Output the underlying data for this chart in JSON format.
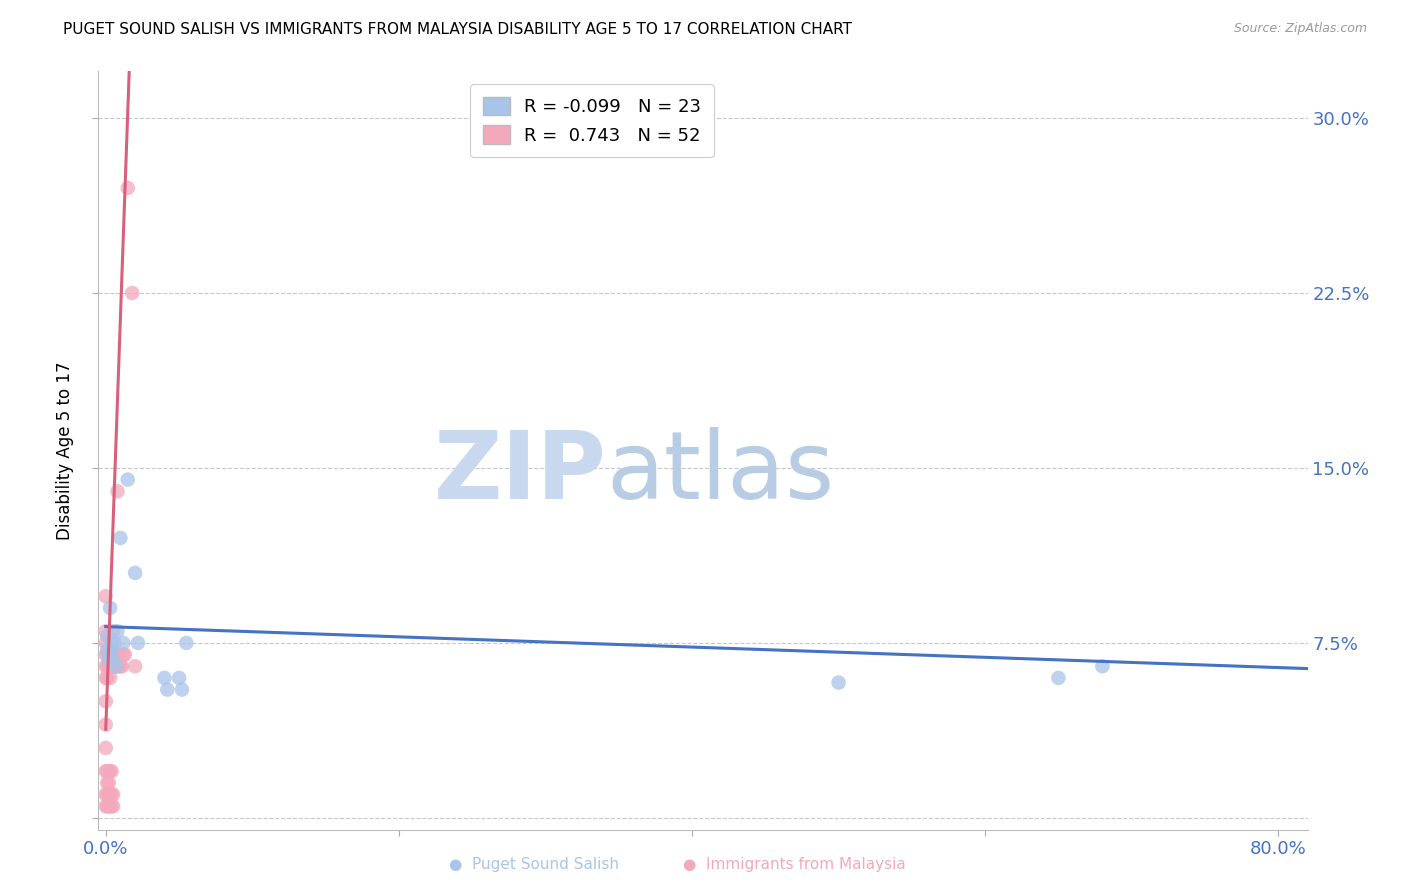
{
  "title": "PUGET SOUND SALISH VS IMMIGRANTS FROM MALAYSIA DISABILITY AGE 5 TO 17 CORRELATION CHART",
  "source": "Source: ZipAtlas.com",
  "ylabel": "Disability Age 5 to 17",
  "xlim": [
    -0.005,
    0.82
  ],
  "ylim": [
    -0.005,
    0.32
  ],
  "x_ticks": [
    0.0,
    0.2,
    0.4,
    0.6,
    0.8
  ],
  "x_tick_labels": [
    "0.0%",
    "",
    "",
    "",
    "80.0%"
  ],
  "y_ticks": [
    0.0,
    0.075,
    0.15,
    0.225,
    0.3
  ],
  "y_tick_labels": [
    "",
    "7.5%",
    "15.0%",
    "22.5%",
    "30.0%"
  ],
  "legend_blue_r": "-0.099",
  "legend_blue_n": "23",
  "legend_pink_r": "0.743",
  "legend_pink_n": "52",
  "blue_color": "#a8c4e8",
  "pink_color": "#f4a8bc",
  "blue_line_color": "#4472c4",
  "pink_line_color": "#d9607a",
  "grid_color": "#c8c8c8",
  "watermark_zip_color": "#c8d8ee",
  "watermark_atlas_color": "#b8cce4",
  "blue_scatter_x": [
    0.001,
    0.001,
    0.002,
    0.003,
    0.004,
    0.004,
    0.005,
    0.006,
    0.007,
    0.008,
    0.01,
    0.012,
    0.015,
    0.02,
    0.022,
    0.04,
    0.042,
    0.05,
    0.052,
    0.055,
    0.5,
    0.65,
    0.68
  ],
  "blue_scatter_y": [
    0.078,
    0.072,
    0.068,
    0.09,
    0.075,
    0.072,
    0.068,
    0.075,
    0.065,
    0.08,
    0.12,
    0.075,
    0.145,
    0.105,
    0.075,
    0.06,
    0.055,
    0.06,
    0.055,
    0.075,
    0.058,
    0.06,
    0.065
  ],
  "pink_scatter_x": [
    0.0,
    0.0,
    0.0,
    0.0,
    0.0,
    0.0,
    0.0,
    0.0,
    0.0,
    0.0,
    0.0,
    0.0,
    0.001,
    0.001,
    0.001,
    0.001,
    0.001,
    0.001,
    0.001,
    0.002,
    0.002,
    0.002,
    0.002,
    0.003,
    0.003,
    0.003,
    0.003,
    0.003,
    0.004,
    0.004,
    0.004,
    0.004,
    0.005,
    0.005,
    0.005,
    0.005,
    0.005,
    0.006,
    0.006,
    0.007,
    0.007,
    0.008,
    0.008,
    0.009,
    0.009,
    0.01,
    0.011,
    0.012,
    0.013,
    0.015,
    0.018,
    0.02
  ],
  "pink_scatter_y": [
    0.005,
    0.01,
    0.02,
    0.03,
    0.04,
    0.05,
    0.06,
    0.065,
    0.07,
    0.075,
    0.08,
    0.095,
    0.005,
    0.01,
    0.015,
    0.02,
    0.06,
    0.065,
    0.07,
    0.005,
    0.01,
    0.015,
    0.065,
    0.005,
    0.01,
    0.02,
    0.06,
    0.065,
    0.005,
    0.01,
    0.02,
    0.065,
    0.005,
    0.01,
    0.065,
    0.07,
    0.08,
    0.065,
    0.07,
    0.065,
    0.07,
    0.065,
    0.14,
    0.065,
    0.07,
    0.065,
    0.065,
    0.07,
    0.07,
    0.27,
    0.225,
    0.065
  ],
  "blue_trend_x": [
    0.0,
    0.82
  ],
  "blue_trend_y": [
    0.082,
    0.064
  ],
  "pink_trend_x": [
    0.0,
    0.016
  ],
  "pink_trend_y": [
    0.038,
    0.32
  ]
}
